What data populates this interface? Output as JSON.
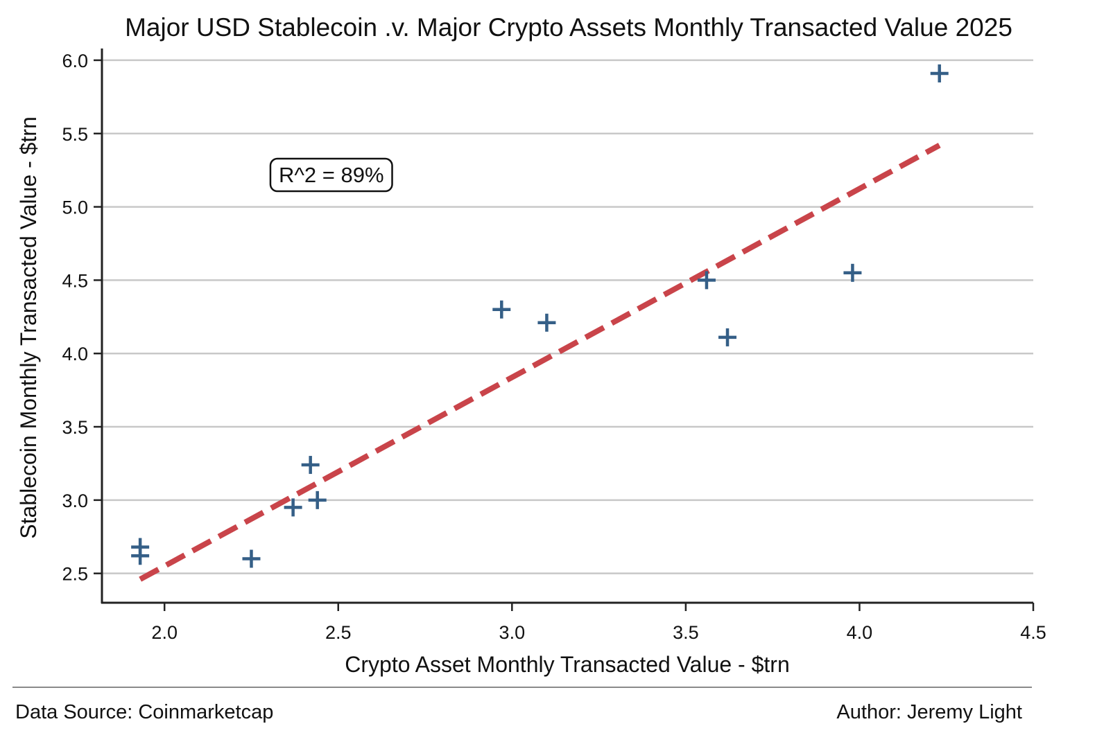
{
  "chart_data": {
    "type": "scatter",
    "title": "Major USD Stablecoin .v. Major Crypto Assets Monthly Transacted Value 2025",
    "xlabel": "Crypto Asset Monthly Transacted Value - $trn",
    "ylabel": "Stablecoin Monthly Transacted Value - $trn",
    "xlim": [
      1.82,
      4.5
    ],
    "ylim": [
      2.3,
      6.08
    ],
    "xticks": [
      2.0,
      2.5,
      3.0,
      3.5,
      4.0,
      4.5
    ],
    "xtick_labels": [
      "2.0",
      "2.5",
      "3.0",
      "3.5",
      "4.0",
      "4.5"
    ],
    "yticks": [
      2.5,
      3.0,
      3.5,
      4.0,
      4.5,
      5.0,
      5.5,
      6.0
    ],
    "ytick_labels": [
      "2.5",
      "3.0",
      "3.5",
      "4.0",
      "4.5",
      "5.0",
      "5.5",
      "6.0"
    ],
    "grid": "horizontal",
    "marker": "plus",
    "marker_color": "#355f87",
    "points": [
      {
        "x": 1.93,
        "y": 2.68
      },
      {
        "x": 1.93,
        "y": 2.62
      },
      {
        "x": 2.25,
        "y": 2.6
      },
      {
        "x": 2.37,
        "y": 2.95
      },
      {
        "x": 2.42,
        "y": 3.24
      },
      {
        "x": 2.44,
        "y": 3.0
      },
      {
        "x": 2.97,
        "y": 4.3
      },
      {
        "x": 3.1,
        "y": 4.21
      },
      {
        "x": 3.56,
        "y": 4.5
      },
      {
        "x": 3.62,
        "y": 4.11
      },
      {
        "x": 3.98,
        "y": 4.55
      },
      {
        "x": 4.23,
        "y": 5.91
      }
    ],
    "trendline": {
      "x": [
        1.93,
        4.23
      ],
      "y": [
        2.46,
        5.42
      ],
      "color": "#c9444a",
      "style": "dashed"
    },
    "annotation": {
      "text": "R^2 = 89%",
      "x": 2.48,
      "y": 5.22
    }
  },
  "footer": {
    "source": "Data Source: Coinmarketcap",
    "author": "Author: Jeremy Light"
  }
}
